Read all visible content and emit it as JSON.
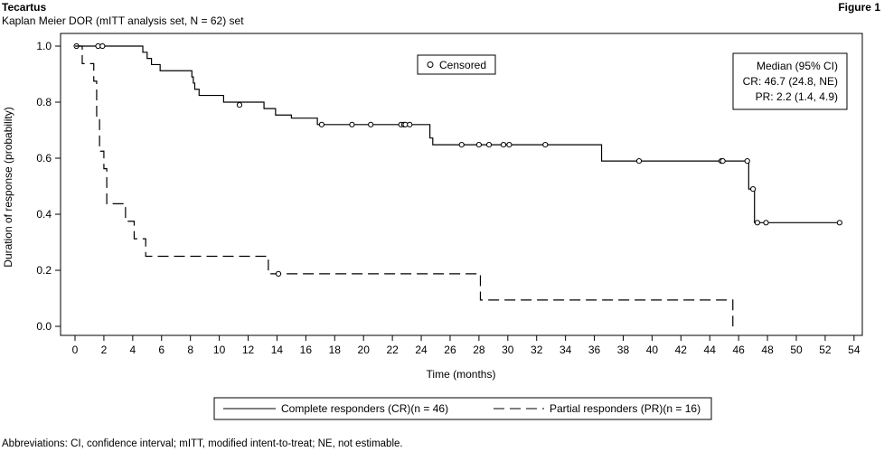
{
  "header": {
    "title": "Tecartus",
    "subtitle": "Kaplan Meier DOR (mITT analysis set, N = 62) set",
    "figure_label": "Figure 1"
  },
  "footnote": "Abbreviations: CI, confidence interval; mITT, modified intent-to-treat; NE, not estimable.",
  "chart_data": {
    "type": "line",
    "subtype": "kaplan-meier",
    "xlabel": "Time (months)",
    "ylabel": "Duration of response (probability)",
    "xlim": [
      0,
      54
    ],
    "ylim": [
      0,
      1
    ],
    "x_ticks": [
      "0",
      "2",
      "4",
      "6",
      "8",
      "10",
      "12",
      "14",
      "16",
      "18",
      "20",
      "22",
      "24",
      "26",
      "28",
      "30",
      "32",
      "34",
      "36",
      "38",
      "40",
      "42",
      "44",
      "46",
      "48",
      "50",
      "52",
      "54"
    ],
    "y_ticks": [
      "0.0",
      "0.2",
      "0.4",
      "0.6",
      "0.8",
      "1.0"
    ],
    "censored_legend": "Censored",
    "median_box": {
      "header": "Median (95% CI)",
      "lines": [
        "CR: 46.7 (24.8, NE)",
        "PR: 2.2 (1.4, 4.9)"
      ]
    },
    "legend": [
      {
        "label": "Complete responders (CR)(n = 46)",
        "style": "solid"
      },
      {
        "label": "Partial responders (PR)(n = 16)",
        "style": "dashed"
      }
    ],
    "series": [
      {
        "name": "Complete responders (CR)(n = 46)",
        "style": "solid",
        "color": "#000000",
        "steps": [
          [
            0,
            1.0
          ],
          [
            4.7,
            0.978
          ],
          [
            5.0,
            0.956
          ],
          [
            5.3,
            0.934
          ],
          [
            5.9,
            0.912
          ],
          [
            8.1,
            0.89
          ],
          [
            8.2,
            0.868
          ],
          [
            8.3,
            0.846
          ],
          [
            8.6,
            0.824
          ],
          [
            10.3,
            0.8
          ],
          [
            13.1,
            0.777
          ],
          [
            13.9,
            0.754
          ],
          [
            15.0,
            0.743
          ],
          [
            16.8,
            0.72
          ],
          [
            24.6,
            0.672
          ],
          [
            24.8,
            0.648
          ],
          [
            36.5,
            0.59
          ],
          [
            46.7,
            0.49
          ],
          [
            47.1,
            0.37
          ],
          [
            53.0,
            0.37
          ]
        ],
        "censored": [
          [
            0.1,
            1.0
          ],
          [
            1.6,
            1.0
          ],
          [
            1.9,
            1.0
          ],
          [
            11.4,
            0.79
          ],
          [
            17.1,
            0.72
          ],
          [
            19.2,
            0.72
          ],
          [
            20.5,
            0.72
          ],
          [
            22.6,
            0.72
          ],
          [
            22.8,
            0.72
          ],
          [
            22.9,
            0.72
          ],
          [
            23.2,
            0.72
          ],
          [
            26.8,
            0.648
          ],
          [
            28.0,
            0.648
          ],
          [
            28.7,
            0.648
          ],
          [
            29.7,
            0.648
          ],
          [
            30.1,
            0.648
          ],
          [
            32.6,
            0.648
          ],
          [
            39.1,
            0.59
          ],
          [
            44.8,
            0.59
          ],
          [
            44.9,
            0.59
          ],
          [
            46.6,
            0.59
          ],
          [
            47.0,
            0.49
          ],
          [
            47.3,
            0.37
          ],
          [
            47.9,
            0.37
          ],
          [
            53.0,
            0.37
          ]
        ]
      },
      {
        "name": "Partial responders (PR)(n = 16)",
        "style": "dashed",
        "color": "#000000",
        "steps": [
          [
            0,
            1.0
          ],
          [
            0.5,
            0.9375
          ],
          [
            1.3,
            0.875
          ],
          [
            1.5,
            0.75
          ],
          [
            1.7,
            0.625
          ],
          [
            2.0,
            0.5625
          ],
          [
            2.2,
            0.4375
          ],
          [
            3.5,
            0.375
          ],
          [
            4.1,
            0.3125
          ],
          [
            4.9,
            0.25
          ],
          [
            13.4,
            0.1875
          ],
          [
            28.1,
            0.094
          ],
          [
            45.6,
            0.094
          ],
          [
            45.6,
            0.0
          ]
        ],
        "censored": [
          [
            14.1,
            0.1875
          ]
        ]
      }
    ]
  }
}
